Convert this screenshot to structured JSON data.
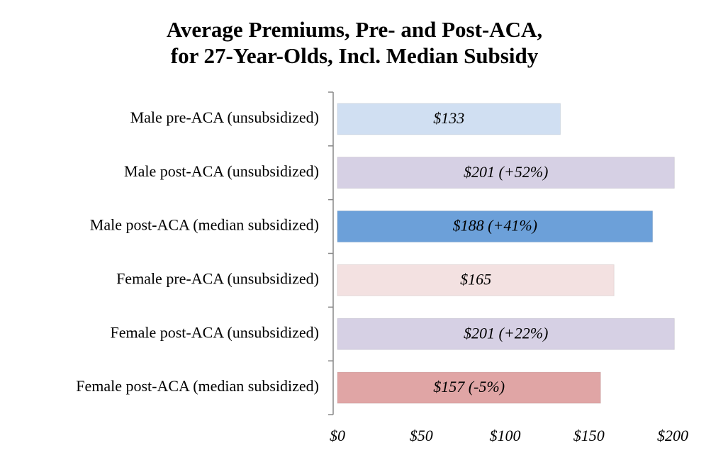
{
  "chart_data": {
    "type": "bar",
    "orientation": "horizontal",
    "title": [
      "Average Premiums, Pre- and Post-ACA,",
      "for 27-Year-Olds, Incl. Median Subsidy"
    ],
    "categories": [
      "Male pre-ACA (unsubsidized)",
      "Male post-ACA (unsubsidized)",
      "Male post-ACA (median subsidized)",
      "Female pre-ACA (unsubsidized)",
      "Female post-ACA (unsubsidized)",
      "Female post-ACA (median subsidized)"
    ],
    "values": [
      133,
      201,
      188,
      165,
      201,
      157
    ],
    "value_labels": [
      "$133",
      "$201 (+52%)",
      "$188 (+41%)",
      "$165",
      "$201 (+22%)",
      "$157 (-5%)"
    ],
    "colors": [
      "#d0dff2",
      "#d6d0e4",
      "#6ca0d9",
      "#f3e1e1",
      "#d6d0e4",
      "#e0a5a5"
    ],
    "xlim": [
      0,
      200
    ],
    "xticks": [
      {
        "value": 0,
        "label": "$0"
      },
      {
        "value": 50,
        "label": "$50"
      },
      {
        "value": 100,
        "label": "$100"
      },
      {
        "value": 150,
        "label": "$150"
      },
      {
        "value": 200,
        "label": "$200"
      }
    ],
    "grid": false
  }
}
